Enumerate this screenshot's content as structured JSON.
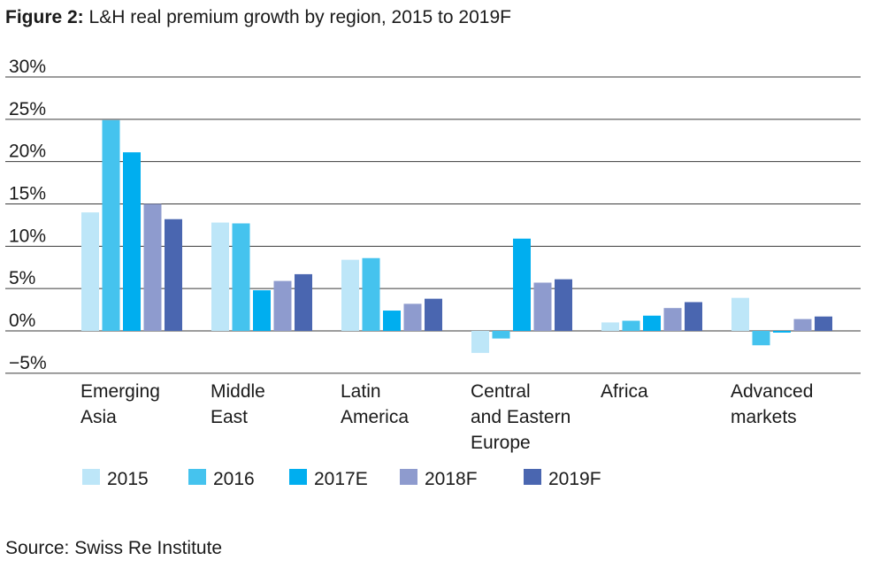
{
  "title": {
    "prefix": "Figure 2:",
    "text": "L&H real premium growth by region, 2015 to 2019F"
  },
  "source": "Source: Swiss Re Institute",
  "colors": {
    "2015": "#bde6f8",
    "2016": "#45c3ee",
    "2017E": "#00aeef",
    "2018F": "#8e9bce",
    "2019F": "#4a66b0",
    "gridline": "#3a3a3a"
  },
  "chart_data": {
    "type": "bar",
    "categories": [
      [
        "Emerging",
        "Asia"
      ],
      [
        "Middle",
        "East"
      ],
      [
        "Latin",
        "America"
      ],
      [
        "Central",
        "and Eastern",
        "Europe"
      ],
      [
        "Africa"
      ],
      [
        "Advanced",
        "markets"
      ]
    ],
    "series": [
      {
        "name": "2015",
        "values": [
          14.0,
          12.8,
          8.4,
          -2.6,
          1.0,
          3.9
        ]
      },
      {
        "name": "2016",
        "values": [
          24.9,
          12.7,
          8.6,
          -0.9,
          1.2,
          -1.7
        ]
      },
      {
        "name": "2017E",
        "values": [
          21.1,
          4.8,
          2.4,
          10.9,
          1.8,
          -0.2
        ]
      },
      {
        "name": "2018F",
        "values": [
          15.0,
          5.9,
          3.2,
          5.7,
          2.7,
          1.4
        ]
      },
      {
        "name": "2019F",
        "values": [
          13.2,
          6.7,
          3.8,
          6.1,
          3.4,
          1.7
        ]
      }
    ],
    "yticks": [
      "30%",
      "25%",
      "20%",
      "15%",
      "10%",
      "5%",
      "0%",
      "−5%"
    ],
    "ytick_values": [
      30,
      25,
      20,
      15,
      10,
      5,
      0,
      -5
    ],
    "ylim": [
      -5,
      30
    ],
    "grid": true,
    "legend_position": "bottom"
  }
}
